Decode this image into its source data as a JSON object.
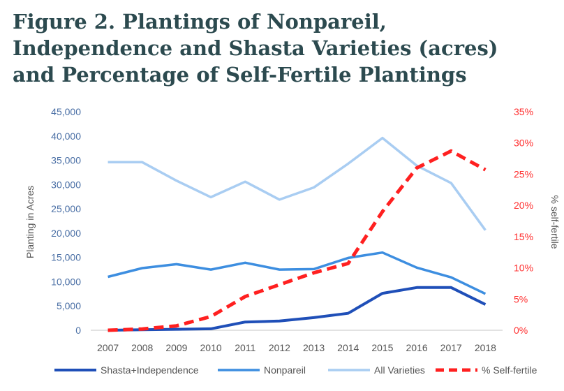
{
  "title_lines": [
    "Figure 2. Plantings of Nonpareil,",
    "Independence and Shasta Varieties (acres)",
    "and Percentage of Self-Fertile Plantings"
  ],
  "colors": {
    "title": "#2c4a4f",
    "shasta": "#1f4fb8",
    "nonpareil": "#3d8ee0",
    "all": "#a9cdf2",
    "self_fertile": "#ff2020",
    "left_axis_text": "#4a6fa5",
    "right_axis_text": "#ff3030",
    "axis_text": "#555555"
  },
  "chart_data": {
    "type": "line",
    "categories": [
      "2007",
      "2008",
      "2009",
      "2010",
      "2011",
      "2012",
      "2013",
      "2014",
      "2015",
      "2016",
      "2017",
      "2018"
    ],
    "ylabel": "Planting in Acres",
    "y2label": "% self-fertile",
    "ylim": [
      0,
      45000
    ],
    "y2lim": [
      0,
      35
    ],
    "yticks": [
      "0",
      "5,000",
      "10,000",
      "15,000",
      "20,000",
      "25,000",
      "30,000",
      "35,000",
      "40,000",
      "45,000"
    ],
    "y2ticks": [
      "0%",
      "5%",
      "10%",
      "15%",
      "20%",
      "25%",
      "30%",
      "35%"
    ],
    "series": [
      {
        "name": "Shasta+Independence",
        "axis": "left",
        "style": "solid-bold",
        "values": [
          0,
          100,
          200,
          300,
          1700,
          1900,
          2600,
          3500,
          7600,
          8800,
          8800,
          5300
        ]
      },
      {
        "name": "Nonpareil",
        "axis": "left",
        "style": "solid",
        "values": [
          11000,
          12800,
          13600,
          12500,
          13900,
          12500,
          12600,
          14900,
          16000,
          12900,
          10900,
          7500
        ]
      },
      {
        "name": "All Varieties",
        "axis": "left",
        "style": "solid",
        "values": [
          34600,
          34600,
          30800,
          27400,
          30600,
          26900,
          29400,
          34300,
          39600,
          33900,
          30300,
          20600
        ]
      },
      {
        "name": "% Self-fertile",
        "axis": "right",
        "style": "dashed",
        "values": [
          0,
          0.2,
          0.7,
          2.2,
          5.4,
          7.3,
          9.2,
          10.7,
          19.0,
          26.0,
          28.7,
          25.7
        ]
      }
    ]
  }
}
